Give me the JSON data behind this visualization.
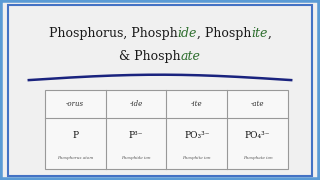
{
  "line1_pieces": [
    [
      "Phosphorus, Phosph",
      "#1a1a1a",
      "normal"
    ],
    [
      "ide",
      "#2d6e2d",
      "italic"
    ],
    [
      ", Phosph",
      "#1a1a1a",
      "normal"
    ],
    [
      "ite",
      "#2d6e2d",
      "italic"
    ],
    [
      ",",
      "#1a1a1a",
      "normal"
    ]
  ],
  "line2_pieces": [
    [
      "& Phosph",
      "#1a1a1a",
      "normal"
    ],
    [
      "ate",
      "#2d6e2d",
      "italic"
    ]
  ],
  "table_headers": [
    "-orus",
    "-ide",
    "-ite",
    "-ate"
  ],
  "table_formulas": [
    "P",
    "P³⁻",
    "PO₃³⁻",
    "PO₄³⁻"
  ],
  "table_labels": [
    "Phosphorus atom",
    "Phosphide ion",
    "Phosphite ion",
    "Phosphate ion"
  ],
  "bg_color": "#e8e8e8",
  "inner_bg_color": "#f0f0f0",
  "border_color_outer": "#5b9bd5",
  "border_color_inner": "#4472c4",
  "line_color": "#1a237e",
  "table_border_color": "#999999",
  "title_fontsize": 9.0,
  "header_fontsize": 5.0,
  "formula_fontsize": 6.5,
  "label_fontsize": 3.0
}
